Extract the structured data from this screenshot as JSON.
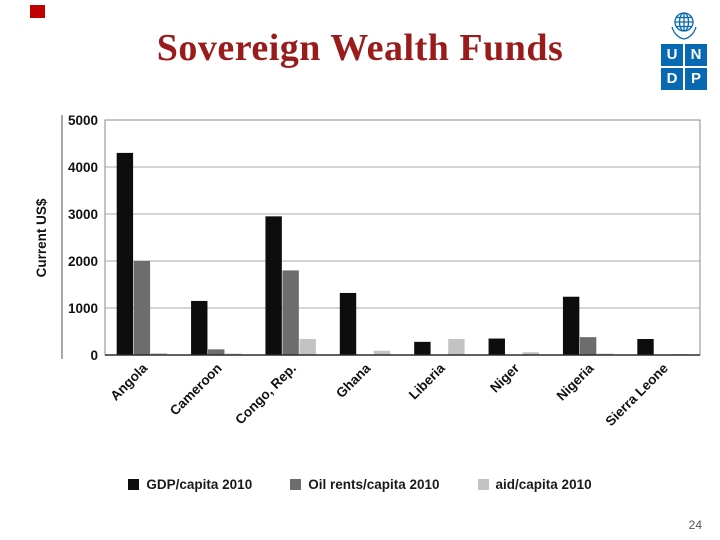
{
  "slide": {
    "title": "Sovereign Wealth Funds",
    "page_number": "24"
  },
  "theme": {
    "title_color": "#9a1b1b",
    "accent_red": "#c00000",
    "logo_blue": "#0769b1"
  },
  "logo": {
    "letters": [
      "U",
      "N",
      "D",
      "P"
    ]
  },
  "chart_data": {
    "type": "bar",
    "title": "",
    "xlabel": "",
    "ylabel": "Current US$",
    "ylim": [
      0,
      5000
    ],
    "yticks": [
      0,
      1000,
      2000,
      3000,
      4000,
      5000
    ],
    "grid": true,
    "legend_position": "bottom",
    "categories": [
      "Angola",
      "Cameroon",
      "Congo, Rep.",
      "Ghana",
      "Liberia",
      "Niger",
      "Nigeria",
      "Sierra Leone"
    ],
    "series": [
      {
        "name": "GDP/capita 2010",
        "color": "#0d0d0d",
        "values": [
          4300,
          1150,
          2950,
          1320,
          280,
          350,
          1240,
          340
        ]
      },
      {
        "name": "Oil rents/capita 2010",
        "color": "#6d6d6d",
        "values": [
          2000,
          120,
          1800,
          0,
          0,
          0,
          380,
          0
        ]
      },
      {
        "name": "aid/capita 2010",
        "color": "#c3c3c3",
        "values": [
          40,
          30,
          340,
          90,
          340,
          60,
          30,
          20
        ]
      }
    ]
  }
}
